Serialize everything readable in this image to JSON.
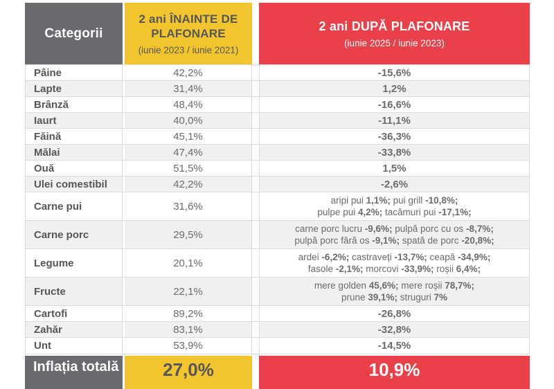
{
  "theme": {
    "gray": "#6a696d",
    "yellow": "#f2c52e",
    "red": "#e94049",
    "textDark": "#56565a",
    "textMid": "#6b6b6e",
    "rowAlt": "#f0f0f1",
    "border": "#dcdcdd"
  },
  "header": {
    "category": {
      "label": "Categorii"
    },
    "before": {
      "title": "2 ani ÎNAINTE DE\nPLAFONARE",
      "subtitle": "(iunie 2023 / iunie 2021)"
    },
    "after": {
      "title": "2 ani DUPĂ PLAFONARE",
      "subtitle": "(iunie 2025 / iunie 2023)"
    }
  },
  "rows": [
    {
      "category": "Pâine",
      "before": "42,2%",
      "after": "-15,6%"
    },
    {
      "category": "Lapte",
      "before": "31,4%",
      "after": "1,2%"
    },
    {
      "category": "Brânză",
      "before": "48,4%",
      "after": "-16,6%"
    },
    {
      "category": "Iaurt",
      "before": "40,0%",
      "after": "-11,1%"
    },
    {
      "category": "Făină",
      "before": "45,1%",
      "after": "-36,3%"
    },
    {
      "category": "Mălai",
      "before": "47,4%",
      "after": "-33,8%"
    },
    {
      "category": "Ouă",
      "before": "51,5%",
      "after": "1,5%"
    },
    {
      "category": "Ulei comestibil",
      "before": "42,2%",
      "after": "-2,6%"
    },
    {
      "category": "Carne pui",
      "before": "31,6%",
      "after_lines": [
        [
          {
            "text": "aripi pui ",
            "bold": false
          },
          {
            "text": "1,1%;",
            "bold": true
          },
          {
            "text": " pui grill ",
            "bold": false
          },
          {
            "text": "-10,8%;",
            "bold": true
          }
        ],
        [
          {
            "text": "pulpe pui ",
            "bold": false
          },
          {
            "text": "4,2%;",
            "bold": true
          },
          {
            "text": " tacâmuri pui ",
            "bold": false
          },
          {
            "text": "-17,1%;",
            "bold": true
          }
        ]
      ]
    },
    {
      "category": "Carne porc",
      "before": "29,5%",
      "after_lines": [
        [
          {
            "text": "carne porc lucru ",
            "bold": false
          },
          {
            "text": "-9,6%;",
            "bold": true
          },
          {
            "text": " pulpă porc cu os ",
            "bold": false
          },
          {
            "text": "-8,7%;",
            "bold": true
          }
        ],
        [
          {
            "text": "pulpă porc fără os ",
            "bold": false
          },
          {
            "text": "-9,1%;",
            "bold": true
          },
          {
            "text": " spată de porc ",
            "bold": false
          },
          {
            "text": "-20,8%;",
            "bold": true
          }
        ]
      ]
    },
    {
      "category": "Legume",
      "before": "20,1%",
      "after_lines": [
        [
          {
            "text": "ardei ",
            "bold": false
          },
          {
            "text": "-6,2%;",
            "bold": true
          },
          {
            "text": " castraveți ",
            "bold": false
          },
          {
            "text": "-13,7%;",
            "bold": true
          },
          {
            "text": " ceapă ",
            "bold": false
          },
          {
            "text": "-34,9%;",
            "bold": true
          }
        ],
        [
          {
            "text": "fasole ",
            "bold": false
          },
          {
            "text": "-2,1%;",
            "bold": true
          },
          {
            "text": " morcovi ",
            "bold": false
          },
          {
            "text": "-33,9%;",
            "bold": true
          },
          {
            "text": " roșii ",
            "bold": false
          },
          {
            "text": "6,4%;",
            "bold": true
          }
        ]
      ]
    },
    {
      "category": "Fructe",
      "before": "22,1%",
      "after_lines": [
        [
          {
            "text": "mere golden ",
            "bold": false
          },
          {
            "text": "45,6%;",
            "bold": true
          },
          {
            "text": " mere roșii ",
            "bold": false
          },
          {
            "text": "78,7%;",
            "bold": true
          }
        ],
        [
          {
            "text": "prune ",
            "bold": false
          },
          {
            "text": "39,1%;",
            "bold": true
          },
          {
            "text": " struguri ",
            "bold": false
          },
          {
            "text": "7%",
            "bold": true
          }
        ]
      ]
    },
    {
      "category": "Cartofi",
      "before": "89,2%",
      "after": "-26,8%"
    },
    {
      "category": "Zahăr",
      "before": "83,1%",
      "after": "-32,8%"
    },
    {
      "category": "Unt",
      "before": "53,9%",
      "after": "-14,5%"
    }
  ],
  "footer": {
    "category": "Inflația totală",
    "before": "27,0%",
    "after": "10,9%"
  },
  "chart_data": {
    "type": "table",
    "title": "Inflație pe categorii: 2 ani înainte de plafonare vs 2 ani după plafonare",
    "columns": [
      "Categorii",
      "2 ani ÎNAINTE DE PLAFONARE (iunie 2023 / iunie 2021)",
      "2 ani DUPĂ PLAFONARE (iunie 2025 / iunie 2023)"
    ],
    "categories": [
      "Pâine",
      "Lapte",
      "Brânză",
      "Iaurt",
      "Făină",
      "Mălai",
      "Ouă",
      "Ulei comestibil",
      "Carne pui",
      "Carne porc",
      "Legume",
      "Fructe",
      "Cartofi",
      "Zahăr",
      "Unt"
    ],
    "series": [
      {
        "name": "2 ani ÎNAINTE DE PLAFONARE (iunie 2023 / iunie 2021)",
        "values": [
          42.2,
          31.4,
          48.4,
          40.0,
          45.1,
          47.4,
          51.5,
          42.2,
          31.6,
          29.5,
          20.1,
          22.1,
          89.2,
          83.1,
          53.9
        ]
      },
      {
        "name": "2 ani DUPĂ PLAFONARE (iunie 2025 / iunie 2023)",
        "values": [
          -15.6,
          1.2,
          -16.6,
          -11.1,
          -36.3,
          -33.8,
          1.5,
          -2.6,
          null,
          null,
          null,
          null,
          -26.8,
          -32.8,
          -14.5
        ]
      }
    ],
    "detail_notes": {
      "Carne pui": "aripi pui 1,1%; pui grill -10,8%; pulpe pui 4,2%; tacâmuri pui -17,1%;",
      "Carne porc": "carne porc lucru -9,6%; pulpă porc cu os -8,7%; pulpă porc fără os -9,1%; spată de porc -20,8%;",
      "Legume": "ardei -6,2%; castraveți -13,7%; ceapă -34,9%; fasole -2,1%; morcovi -33,9%; roșii 6,4%;",
      "Fructe": "mere golden 45,6%; mere roșii 78,7%; prune 39,1%; struguri 7%"
    },
    "totals": {
      "label": "Inflația totală",
      "before_pct": 27.0,
      "after_pct": 10.9
    }
  }
}
